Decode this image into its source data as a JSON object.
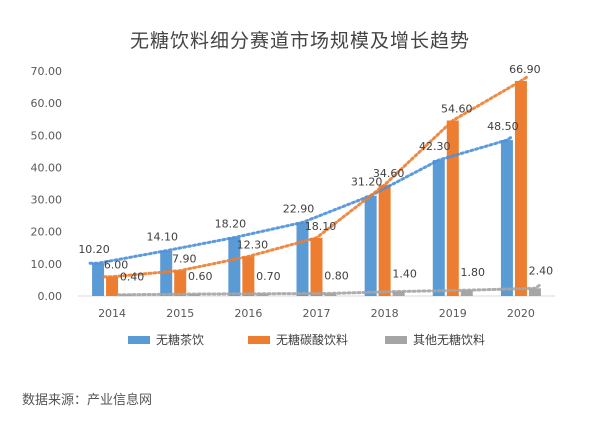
{
  "chart_data": {
    "type": "bar",
    "title": "无糖饮料细分赛道市场规模及增长趋势",
    "categories": [
      "2014",
      "2015",
      "2016",
      "2017",
      "2018",
      "2019",
      "2020"
    ],
    "series": [
      {
        "name": "无糖茶饮",
        "values": [
          10.2,
          14.1,
          18.2,
          22.9,
          31.2,
          42.3,
          48.5
        ],
        "color": "#5b9bd5",
        "trendline_color": "#4a90d9"
      },
      {
        "name": "无糖碳酸饮料",
        "values": [
          6.0,
          7.9,
          12.3,
          18.1,
          34.6,
          54.6,
          66.9
        ],
        "color": "#ed7d31",
        "trendline_color": "#ed7d31"
      },
      {
        "name": "其他无糖饮料",
        "values": [
          0.4,
          0.6,
          0.7,
          0.8,
          1.4,
          1.8,
          2.4
        ],
        "color": "#a5a5a5",
        "trendline_color": "#a5a5a5"
      }
    ],
    "value_labels": [
      [
        "10.20",
        "14.10",
        "18.20",
        "22.90",
        "31.20",
        "42.30",
        "48.50"
      ],
      [
        "6.00",
        "7.90",
        "12.30",
        "18.10",
        "34.60",
        "54.60",
        "66.90"
      ],
      [
        "0.40",
        "0.60",
        "0.70",
        "0.80",
        "1.40",
        "1.80",
        "2.40"
      ]
    ],
    "y_ticks": [
      "0.00",
      "10.00",
      "20.00",
      "30.00",
      "40.00",
      "50.00",
      "60.00",
      "70.00"
    ],
    "ylim": [
      0,
      70
    ],
    "xlabel": "",
    "ylabel": "",
    "trendlines": "dotted",
    "grid": false,
    "legend_position": "bottom"
  },
  "footer": {
    "source": "数据来源：产业信息网"
  }
}
